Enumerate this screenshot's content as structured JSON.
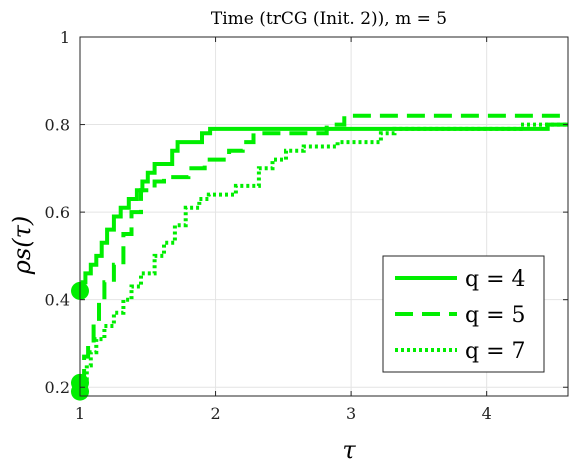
{
  "chart_data": {
    "type": "line",
    "title": "Time (trCG (Init. 2)), m = 5",
    "xlabel": "τ",
    "ylabel": "ρs(τ)",
    "xlim": [
      1,
      4.6
    ],
    "ylim": [
      0.18,
      1.0
    ],
    "xticks": [
      1,
      2,
      3,
      4
    ],
    "yticks": [
      0.2,
      0.4,
      0.6,
      0.8,
      1
    ],
    "grid": true,
    "legend_position": "bottom-right",
    "series": [
      {
        "name": "q = 4",
        "style": "solid",
        "color": "#00ee00",
        "start_marker": [
          1,
          0.42
        ],
        "points": [
          [
            1,
            0.42
          ],
          [
            1.02,
            0.44
          ],
          [
            1.04,
            0.46
          ],
          [
            1.08,
            0.48
          ],
          [
            1.12,
            0.5
          ],
          [
            1.16,
            0.53
          ],
          [
            1.2,
            0.56
          ],
          [
            1.25,
            0.59
          ],
          [
            1.3,
            0.61
          ],
          [
            1.36,
            0.63
          ],
          [
            1.42,
            0.65
          ],
          [
            1.46,
            0.67
          ],
          [
            1.5,
            0.69
          ],
          [
            1.55,
            0.71
          ],
          [
            1.68,
            0.74
          ],
          [
            1.72,
            0.76
          ],
          [
            1.9,
            0.78
          ],
          [
            1.96,
            0.79
          ],
          [
            3.3,
            0.79
          ],
          [
            3.4,
            0.79
          ],
          [
            4.45,
            0.8
          ],
          [
            4.6,
            0.8
          ]
        ]
      },
      {
        "name": "q = 5",
        "style": "dashed",
        "color": "#00ee00",
        "start_marker": [
          1,
          0.21
        ],
        "points": [
          [
            1,
            0.21
          ],
          [
            1.03,
            0.27
          ],
          [
            1.06,
            0.3
          ],
          [
            1.1,
            0.35
          ],
          [
            1.14,
            0.4
          ],
          [
            1.18,
            0.44
          ],
          [
            1.25,
            0.48
          ],
          [
            1.32,
            0.55
          ],
          [
            1.38,
            0.6
          ],
          [
            1.45,
            0.65
          ],
          [
            1.55,
            0.67
          ],
          [
            1.62,
            0.68
          ],
          [
            1.8,
            0.7
          ],
          [
            1.92,
            0.72
          ],
          [
            2.1,
            0.74
          ],
          [
            2.2,
            0.76
          ],
          [
            2.28,
            0.78
          ],
          [
            2.82,
            0.8
          ],
          [
            2.95,
            0.82
          ],
          [
            4.6,
            0.82
          ]
        ]
      },
      {
        "name": "q = 7",
        "style": "dotted",
        "color": "#00ee00",
        "start_marker": [
          1,
          0.19
        ],
        "points": [
          [
            1,
            0.19
          ],
          [
            1.02,
            0.22
          ],
          [
            1.05,
            0.25
          ],
          [
            1.08,
            0.28
          ],
          [
            1.12,
            0.31
          ],
          [
            1.18,
            0.34
          ],
          [
            1.25,
            0.37
          ],
          [
            1.32,
            0.4
          ],
          [
            1.38,
            0.43
          ],
          [
            1.45,
            0.46
          ],
          [
            1.55,
            0.5
          ],
          [
            1.62,
            0.53
          ],
          [
            1.7,
            0.57
          ],
          [
            1.78,
            0.61
          ],
          [
            1.88,
            0.63
          ],
          [
            1.95,
            0.64
          ],
          [
            2.15,
            0.66
          ],
          [
            2.32,
            0.7
          ],
          [
            2.42,
            0.72
          ],
          [
            2.52,
            0.74
          ],
          [
            2.65,
            0.75
          ],
          [
            2.9,
            0.76
          ],
          [
            3.22,
            0.78
          ],
          [
            3.32,
            0.79
          ],
          [
            4.25,
            0.8
          ],
          [
            4.6,
            0.8
          ]
        ]
      }
    ]
  }
}
